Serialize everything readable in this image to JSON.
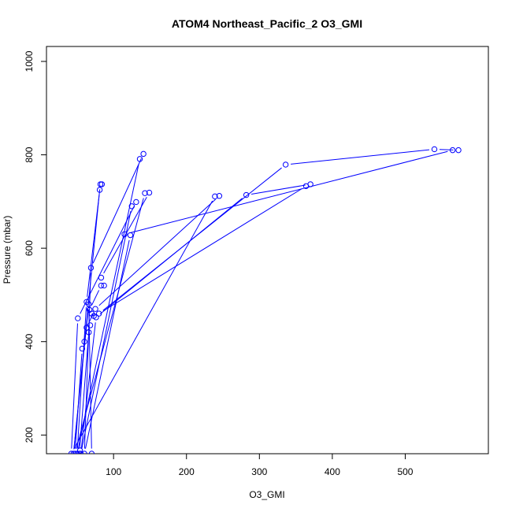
{
  "chart_data": {
    "type": "line",
    "title": "ATOM4 Northeast_Pacific_2 O3_GMI",
    "xlabel": "O3_GMI",
    "ylabel": "Pressure (mbar)",
    "xlim": [
      8,
      614
    ],
    "ylim": [
      1032,
      160
    ],
    "y_reversed": true,
    "grid": false,
    "legend": "none",
    "x_ticks": [
      100,
      200,
      300,
      400,
      500
    ],
    "y_ticks": [
      200,
      400,
      600,
      800,
      1000
    ],
    "series": [
      {
        "color": "#0000ff",
        "marker": "open-circle",
        "points": [
          {
            "x": 54,
            "y": 167
          },
          {
            "x": 53,
            "y": 160
          },
          {
            "x": 66,
            "y": 420
          },
          {
            "x": 68,
            "y": 435
          },
          {
            "x": 73,
            "y": 455
          },
          {
            "x": 70,
            "y": 460
          },
          {
            "x": 67,
            "y": 468
          },
          {
            "x": 83,
            "y": 520
          },
          {
            "x": 87,
            "y": 520
          },
          {
            "x": 83,
            "y": 537
          },
          {
            "x": 149,
            "y": 719
          },
          {
            "x": 143,
            "y": 718
          },
          {
            "x": 47,
            "y": 160
          },
          {
            "x": 57,
            "y": 385
          },
          {
            "x": 60,
            "y": 400
          },
          {
            "x": 63,
            "y": 430
          },
          {
            "x": 75,
            "y": 470
          },
          {
            "x": 245,
            "y": 712
          },
          {
            "x": 239,
            "y": 711
          },
          {
            "x": 42,
            "y": 160
          },
          {
            "x": 51,
            "y": 450
          },
          {
            "x": 131,
            "y": 699
          },
          {
            "x": 125,
            "y": 690
          },
          {
            "x": 55,
            "y": 160
          },
          {
            "x": 76,
            "y": 452
          },
          {
            "x": 282,
            "y": 714
          },
          {
            "x": 370,
            "y": 737
          },
          {
            "x": 364,
            "y": 733
          },
          {
            "x": 80,
            "y": 460
          },
          {
            "x": 336,
            "y": 779
          },
          {
            "x": 540,
            "y": 812
          },
          {
            "x": 573,
            "y": 810
          },
          {
            "x": 565,
            "y": 810
          },
          {
            "x": 115,
            "y": 630
          },
          {
            "x": 123,
            "y": 628
          },
          {
            "x": 60,
            "y": 160
          },
          {
            "x": 69,
            "y": 558
          },
          {
            "x": 141,
            "y": 802
          },
          {
            "x": 136,
            "y": 791
          },
          {
            "x": 50,
            "y": 160
          },
          {
            "x": 63,
            "y": 485
          },
          {
            "x": 82,
            "y": 737
          },
          {
            "x": 84,
            "y": 737
          },
          {
            "x": 81,
            "y": 725
          },
          {
            "x": 45,
            "y": 160
          },
          {
            "x": 66,
            "y": 480
          },
          {
            "x": 70,
            "y": 160
          }
        ]
      }
    ]
  }
}
